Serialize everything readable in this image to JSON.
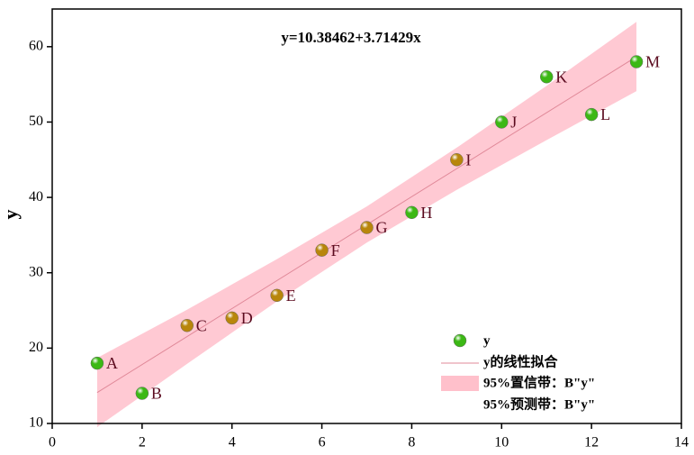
{
  "chart_data": {
    "type": "scatter",
    "y_label": "y",
    "equation": "y=10.38462+3.71429x",
    "x": [
      1,
      2,
      3,
      4,
      5,
      6,
      7,
      8,
      9,
      10,
      11,
      12,
      13
    ],
    "values": [
      18,
      14,
      23,
      24,
      27,
      33,
      36,
      38,
      45,
      50,
      56,
      51,
      58
    ],
    "point_labels": [
      "A",
      "B",
      "C",
      "D",
      "E",
      "F",
      "G",
      "H",
      "I",
      "J",
      "K",
      "L",
      "M"
    ],
    "point_colors": [
      "#3cb815",
      "#3cb815",
      "#b8860b",
      "#b8860b",
      "#b8860b",
      "#b8860b",
      "#b8860b",
      "#3cb815",
      "#b8860b",
      "#3cb815",
      "#3cb815",
      "#3cb815",
      "#3cb815"
    ],
    "name": "y",
    "color": "#3cb815",
    "fit": {
      "name": "y的线性拟合",
      "color": "#e08898",
      "x": [
        1,
        13
      ],
      "values": [
        14.1,
        58.67
      ]
    },
    "band": {
      "name": "95%置信带：B\"y\"",
      "color": "#ffc0cb",
      "x": [
        1,
        3,
        5,
        7,
        9,
        11,
        13
      ],
      "lower": [
        9.5,
        17.9,
        26.2,
        34,
        41,
        47.6,
        54.1
      ],
      "upper": [
        18.7,
        25.1,
        31.8,
        38.8,
        46.6,
        54.8,
        63.3
      ]
    },
    "prediction_band": {
      "name": "95%预测带：B\"y\""
    },
    "xlim": [
      0,
      14
    ],
    "ylim": [
      10,
      65
    ],
    "xticks": [
      0,
      2,
      4,
      6,
      8,
      10,
      12,
      14
    ],
    "yticks": [
      10,
      20,
      30,
      40,
      50,
      60
    ]
  }
}
